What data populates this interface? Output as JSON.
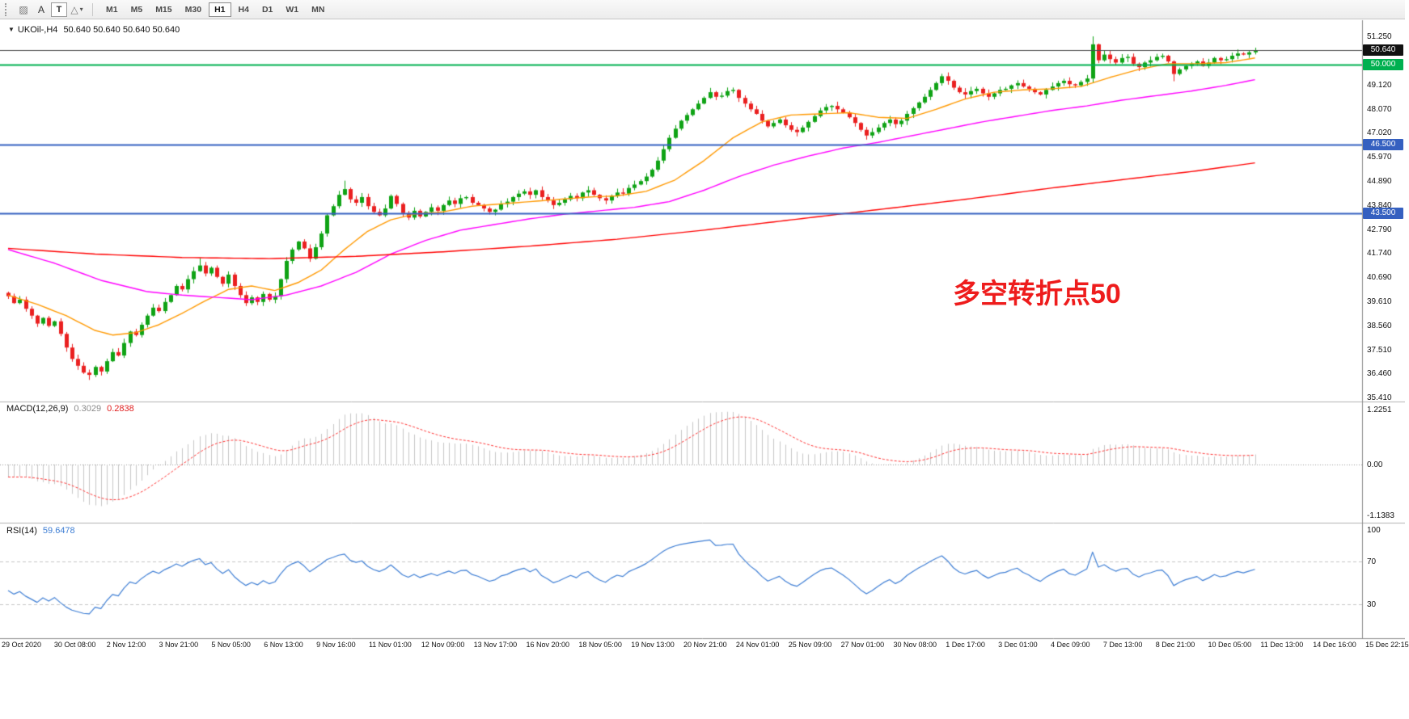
{
  "toolbar": {
    "hatch_icon": "▨",
    "text_tool_label": "A",
    "label_tool_label": "T",
    "shapes_icon": "△",
    "caret_icon": "▾",
    "timeframes": [
      "M1",
      "M5",
      "M15",
      "M30",
      "H1",
      "H4",
      "D1",
      "W1",
      "MN"
    ],
    "active_timeframe": "H1"
  },
  "chart": {
    "collapse_icon": "▼",
    "symbol_title": "UKOil-,H4",
    "ohlc": "50.640 50.640 50.640 50.640",
    "annotation": {
      "text": "多空转折点50",
      "color": "#ee1c1c"
    }
  },
  "macd_panel": {
    "label": "MACD(12,26,9)",
    "value_main": "0.3029",
    "value_signal": "0.2838"
  },
  "rsi_panel": {
    "label": "RSI(14)",
    "value": "59.6478"
  },
  "chart_data": {
    "type": "candlestick",
    "title": "UKOil-,H4",
    "symbol": "UKOil-",
    "timeframe": "H4",
    "ylim": [
      35.41,
      51.25
    ],
    "current_price": 50.64,
    "y_tick_labels": [
      "51.250",
      "49.120",
      "48.070",
      "47.020",
      "45.970",
      "44.890",
      "43.840",
      "42.790",
      "41.740",
      "40.690",
      "39.610",
      "38.560",
      "37.510",
      "36.460",
      "35.410"
    ],
    "x_tick_labels": [
      "29 Oct 2020",
      "30 Oct 08:00",
      "2 Nov 12:00",
      "3 Nov 21:00",
      "5 Nov 05:00",
      "6 Nov 13:00",
      "9 Nov 16:00",
      "11 Nov 01:00",
      "12 Nov 09:00",
      "13 Nov 17:00",
      "16 Nov 20:00",
      "18 Nov 05:00",
      "19 Nov 13:00",
      "20 Nov 21:00",
      "24 Nov 01:00",
      "25 Nov 09:00",
      "27 Nov 01:00",
      "30 Nov 08:00",
      "1 Dec 17:00",
      "3 Dec 01:00",
      "4 Dec 09:00",
      "7 Dec 13:00",
      "8 Dec 21:00",
      "10 Dec 05:00",
      "11 Dec 13:00",
      "14 Dec 16:00",
      "15 Dec 22:15"
    ],
    "first_open": 40.0,
    "closes": [
      39.85,
      39.55,
      39.7,
      39.3,
      39.0,
      38.65,
      38.9,
      38.55,
      38.75,
      38.2,
      37.6,
      37.1,
      36.8,
      36.5,
      36.4,
      36.75,
      36.55,
      37.0,
      37.4,
      37.25,
      37.8,
      38.3,
      38.15,
      38.6,
      39.0,
      39.35,
      39.2,
      39.6,
      39.9,
      40.3,
      40.15,
      40.6,
      40.95,
      41.2,
      40.85,
      41.1,
      40.7,
      40.4,
      40.8,
      40.3,
      39.9,
      39.55,
      39.8,
      39.6,
      39.95,
      39.7,
      39.85,
      40.6,
      41.4,
      41.9,
      42.25,
      41.95,
      41.5,
      42.0,
      42.6,
      43.4,
      43.8,
      44.3,
      44.55,
      44.1,
      43.95,
      44.2,
      43.8,
      43.55,
      43.4,
      43.7,
      44.25,
      43.9,
      43.5,
      43.3,
      43.6,
      43.35,
      43.55,
      43.75,
      43.6,
      43.85,
      44.05,
      43.9,
      44.15,
      44.2,
      43.95,
      43.85,
      43.7,
      43.55,
      43.65,
      43.9,
      44.0,
      44.2,
      44.35,
      44.45,
      44.3,
      44.5,
      44.2,
      44.05,
      43.85,
      43.95,
      44.1,
      44.25,
      44.15,
      44.4,
      44.5,
      44.3,
      44.15,
      44.05,
      44.25,
      44.4,
      44.35,
      44.6,
      44.75,
      44.9,
      45.1,
      45.4,
      45.8,
      46.3,
      46.8,
      47.2,
      47.55,
      47.8,
      48.05,
      48.3,
      48.55,
      48.8,
      48.6,
      48.65,
      48.85,
      48.9,
      48.55,
      48.3,
      48.05,
      47.85,
      47.55,
      47.3,
      47.45,
      47.6,
      47.35,
      47.15,
      47.05,
      47.25,
      47.5,
      47.75,
      48.0,
      48.15,
      48.2,
      48.05,
      47.9,
      47.7,
      47.45,
      47.15,
      46.9,
      47.05,
      47.25,
      47.45,
      47.6,
      47.4,
      47.55,
      47.85,
      48.1,
      48.35,
      48.6,
      48.9,
      49.2,
      49.5,
      49.3,
      49.0,
      48.8,
      48.7,
      48.85,
      48.95,
      48.75,
      48.6,
      48.75,
      48.9,
      48.95,
      49.1,
      49.2,
      49.05,
      48.95,
      48.8,
      48.7,
      48.9,
      49.05,
      49.2,
      49.3,
      49.15,
      49.1,
      49.25,
      49.4,
      50.9,
      50.2,
      50.45,
      50.25,
      50.1,
      50.3,
      50.35,
      50.05,
      49.9,
      50.1,
      50.2,
      50.35,
      50.4,
      50.15,
      49.6,
      49.8,
      49.95,
      50.05,
      50.15,
      49.95,
      50.1,
      50.3,
      50.2,
      50.25,
      50.4,
      50.5,
      50.45,
      50.55,
      50.64
    ],
    "wick_overrides": {
      "14": {
        "low": 36.18
      },
      "33": {
        "high": 41.52
      },
      "58": {
        "high": 44.92
      },
      "111": {
        "low": 45.05
      },
      "187": {
        "high": 51.25
      },
      "201": {
        "low": 49.28
      }
    },
    "candle_up_color": "#0fa315",
    "candle_down_color": "#ea2020",
    "overlays": [
      {
        "name": "ma-fast",
        "color": "#ff9900",
        "points": [
          [
            0,
            39.9
          ],
          [
            5,
            39.5
          ],
          [
            10,
            39.0
          ],
          [
            15,
            38.35
          ],
          [
            18,
            38.15
          ],
          [
            22,
            38.25
          ],
          [
            26,
            38.6
          ],
          [
            30,
            39.1
          ],
          [
            34,
            39.65
          ],
          [
            38,
            40.15
          ],
          [
            42,
            40.3
          ],
          [
            46,
            40.1
          ],
          [
            50,
            40.45
          ],
          [
            54,
            41.0
          ],
          [
            58,
            41.9
          ],
          [
            62,
            42.7
          ],
          [
            66,
            43.2
          ],
          [
            70,
            43.45
          ],
          [
            75,
            43.55
          ],
          [
            80,
            43.8
          ],
          [
            85,
            43.9
          ],
          [
            90,
            44.0
          ],
          [
            95,
            44.1
          ],
          [
            100,
            44.2
          ],
          [
            105,
            44.25
          ],
          [
            110,
            44.45
          ],
          [
            115,
            44.95
          ],
          [
            120,
            45.8
          ],
          [
            125,
            46.8
          ],
          [
            130,
            47.5
          ],
          [
            135,
            47.8
          ],
          [
            140,
            47.85
          ],
          [
            145,
            47.9
          ],
          [
            150,
            47.7
          ],
          [
            155,
            47.65
          ],
          [
            160,
            48.05
          ],
          [
            165,
            48.5
          ],
          [
            170,
            48.8
          ],
          [
            175,
            48.9
          ],
          [
            180,
            48.95
          ],
          [
            185,
            49.05
          ],
          [
            190,
            49.45
          ],
          [
            195,
            49.8
          ],
          [
            200,
            50.05
          ],
          [
            205,
            50.05
          ],
          [
            210,
            50.1
          ],
          [
            215,
            50.3
          ]
        ]
      },
      {
        "name": "ma-mid",
        "color": "#ff00ff",
        "points": [
          [
            0,
            41.9
          ],
          [
            8,
            41.3
          ],
          [
            16,
            40.55
          ],
          [
            24,
            40.05
          ],
          [
            30,
            39.9
          ],
          [
            36,
            39.8
          ],
          [
            42,
            39.7
          ],
          [
            48,
            39.9
          ],
          [
            54,
            40.3
          ],
          [
            60,
            40.9
          ],
          [
            66,
            41.7
          ],
          [
            72,
            42.3
          ],
          [
            78,
            42.75
          ],
          [
            84,
            43.0
          ],
          [
            90,
            43.25
          ],
          [
            96,
            43.45
          ],
          [
            102,
            43.6
          ],
          [
            108,
            43.75
          ],
          [
            114,
            44.0
          ],
          [
            120,
            44.5
          ],
          [
            126,
            45.1
          ],
          [
            132,
            45.6
          ],
          [
            138,
            46.0
          ],
          [
            144,
            46.35
          ],
          [
            150,
            46.6
          ],
          [
            156,
            46.9
          ],
          [
            162,
            47.2
          ],
          [
            168,
            47.5
          ],
          [
            174,
            47.75
          ],
          [
            180,
            48.0
          ],
          [
            186,
            48.2
          ],
          [
            192,
            48.45
          ],
          [
            198,
            48.65
          ],
          [
            204,
            48.85
          ],
          [
            210,
            49.1
          ],
          [
            215,
            49.35
          ]
        ]
      },
      {
        "name": "ma-slow",
        "color": "#ff0000",
        "points": [
          [
            0,
            41.95
          ],
          [
            15,
            41.7
          ],
          [
            30,
            41.55
          ],
          [
            45,
            41.5
          ],
          [
            60,
            41.6
          ],
          [
            75,
            41.8
          ],
          [
            90,
            42.05
          ],
          [
            105,
            42.35
          ],
          [
            120,
            42.75
          ],
          [
            135,
            43.2
          ],
          [
            150,
            43.65
          ],
          [
            165,
            44.1
          ],
          [
            180,
            44.6
          ],
          [
            195,
            45.05
          ],
          [
            205,
            45.35
          ],
          [
            215,
            45.7
          ]
        ]
      }
    ],
    "hlines": [
      {
        "label": "50.640",
        "value": 50.64,
        "color": "#4a4a4a",
        "badge": "#111111",
        "width": 1
      },
      {
        "label": "50.000",
        "value": 50.0,
        "color": "#00b050",
        "badge": "#00b050",
        "width": 2
      },
      {
        "label": "46.500",
        "value": 46.5,
        "color": "#3560c0",
        "badge": "#3560c0",
        "width": 2
      },
      {
        "label": "43.500",
        "value": 43.5,
        "color": "#3560c0",
        "badge": "#3560c0",
        "width": 2
      }
    ],
    "macd": {
      "params": [
        12,
        26,
        9
      ],
      "bar_color": "#c6c6c6",
      "signal_color": "#ff3333",
      "y_ticks": [
        {
          "v": 1.2251,
          "t": "1.2251"
        },
        {
          "v": 0,
          "t": "0.00"
        },
        {
          "v": -1.1383,
          "t": "-1.1383"
        }
      ]
    },
    "rsi": {
      "params": [
        14
      ],
      "color": "#3e7ed4",
      "levels": [
        70,
        30
      ],
      "y_ticks": [
        {
          "v": 100,
          "t": "100"
        },
        {
          "v": 70,
          "t": "70"
        },
        {
          "v": 30,
          "t": "30"
        }
      ]
    }
  }
}
